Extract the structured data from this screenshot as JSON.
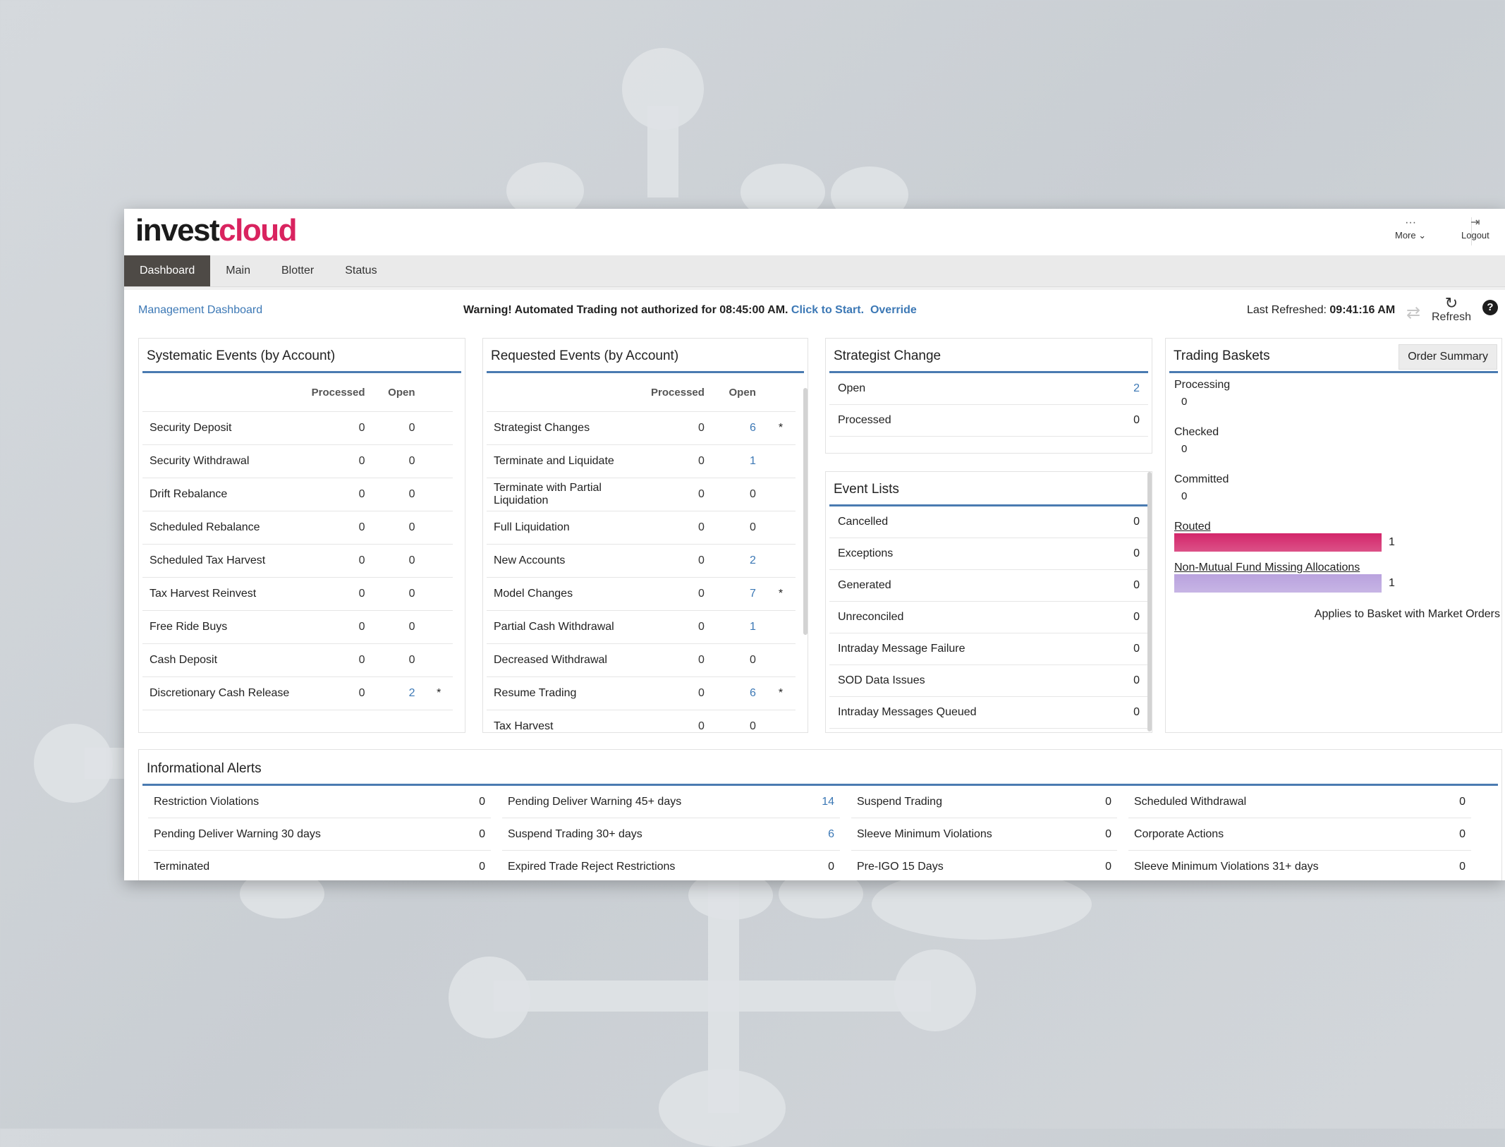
{
  "header": {
    "logo_part1": "invest",
    "logo_part2": "cloud",
    "more_label": "More",
    "more_icon": "···",
    "logout_label": "Logout"
  },
  "nav": {
    "tabs": [
      "Dashboard",
      "Main",
      "Blotter",
      "Status"
    ]
  },
  "subbar": {
    "breadcrumb": "Management Dashboard",
    "warning_text": "Warning! Automated Trading not authorized for 08:45:00 AM.",
    "click_to_start": "Click to Start.",
    "override": "Override",
    "last_refreshed_label": "Last Refreshed:",
    "last_refreshed_time": "09:41:16 AM",
    "refresh_label": "Refresh",
    "help_icon": "?"
  },
  "systematic": {
    "title": "Systematic Events (by Account)",
    "col_processed": "Processed",
    "col_open": "Open",
    "rows": [
      {
        "name": "Security Deposit",
        "processed": "0",
        "open": "0",
        "star": ""
      },
      {
        "name": "Security Withdrawal",
        "processed": "0",
        "open": "0",
        "star": ""
      },
      {
        "name": "Drift Rebalance",
        "processed": "0",
        "open": "0",
        "star": ""
      },
      {
        "name": "Scheduled Rebalance",
        "processed": "0",
        "open": "0",
        "star": ""
      },
      {
        "name": "Scheduled Tax Harvest",
        "processed": "0",
        "open": "0",
        "star": ""
      },
      {
        "name": "Tax Harvest Reinvest",
        "processed": "0",
        "open": "0",
        "star": ""
      },
      {
        "name": "Free Ride Buys",
        "processed": "0",
        "open": "0",
        "star": ""
      },
      {
        "name": "Cash Deposit",
        "processed": "0",
        "open": "0",
        "star": ""
      },
      {
        "name": "Discretionary Cash Release",
        "processed": "0",
        "open": "2",
        "star": "*"
      }
    ]
  },
  "requested": {
    "title": "Requested Events (by Account)",
    "col_processed": "Processed",
    "col_open": "Open",
    "rows": [
      {
        "name": "Strategist Changes",
        "processed": "0",
        "open": "6",
        "star": "*"
      },
      {
        "name": "Terminate and Liquidate",
        "processed": "0",
        "open": "1",
        "star": ""
      },
      {
        "name": "Terminate with Partial Liquidation",
        "processed": "0",
        "open": "0",
        "star": ""
      },
      {
        "name": "Full Liquidation",
        "processed": "0",
        "open": "0",
        "star": ""
      },
      {
        "name": "New Accounts",
        "processed": "0",
        "open": "2",
        "star": ""
      },
      {
        "name": "Model Changes",
        "processed": "0",
        "open": "7",
        "star": "*"
      },
      {
        "name": "Partial Cash Withdrawal",
        "processed": "0",
        "open": "1",
        "star": ""
      },
      {
        "name": "Decreased Withdrawal",
        "processed": "0",
        "open": "0",
        "star": ""
      },
      {
        "name": "Resume Trading",
        "processed": "0",
        "open": "6",
        "star": "*"
      },
      {
        "name": "Tax Harvest",
        "processed": "0",
        "open": "0",
        "star": ""
      }
    ]
  },
  "strategist": {
    "title": "Strategist Change",
    "rows": [
      {
        "name": "Open",
        "value": "2"
      },
      {
        "name": "Processed",
        "value": "0"
      }
    ]
  },
  "event_lists": {
    "title": "Event Lists",
    "rows": [
      {
        "name": "Cancelled",
        "value": "0"
      },
      {
        "name": "Exceptions",
        "value": "0"
      },
      {
        "name": "Generated",
        "value": "0"
      },
      {
        "name": "Unreconciled",
        "value": "0"
      },
      {
        "name": "Intraday Message Failure",
        "value": "0"
      },
      {
        "name": "SOD Data Issues",
        "value": "0"
      },
      {
        "name": "Intraday Messages Queued",
        "value": "0"
      }
    ]
  },
  "baskets": {
    "title": "Trading Baskets",
    "order_summary": "Order Summary",
    "items": [
      {
        "name": "Processing",
        "value": "0"
      },
      {
        "name": "Checked",
        "value": "0"
      },
      {
        "name": "Committed",
        "value": "0"
      }
    ],
    "bars": [
      {
        "name": "Routed",
        "value": "1",
        "color": "#d3266a"
      },
      {
        "name": "Non-Mutual Fund Missing Allocations",
        "value": "1",
        "color": "#b9a2de"
      }
    ],
    "footer_note": "Applies to Basket with Market Orders"
  },
  "alerts": {
    "title": "Informational Alerts",
    "columns": [
      [
        {
          "name": "Restriction Violations",
          "value": "0"
        },
        {
          "name": "Pending Deliver Warning 30 days",
          "value": "0"
        },
        {
          "name": "Terminated",
          "value": "0"
        }
      ],
      [
        {
          "name": "Pending Deliver Warning 45+ days",
          "value": "14"
        },
        {
          "name": "Suspend Trading 30+ days",
          "value": "6"
        },
        {
          "name": "Expired Trade Reject Restrictions",
          "value": "0"
        }
      ],
      [
        {
          "name": "Suspend Trading",
          "value": "0"
        },
        {
          "name": "Sleeve Minimum Violations",
          "value": "0"
        },
        {
          "name": "Pre-IGO 15 Days",
          "value": "0"
        }
      ],
      [
        {
          "name": "Scheduled Withdrawal",
          "value": "0"
        },
        {
          "name": "Corporate Actions",
          "value": "0"
        },
        {
          "name": "Sleeve Minimum Violations 31+ days",
          "value": "0"
        }
      ]
    ]
  }
}
